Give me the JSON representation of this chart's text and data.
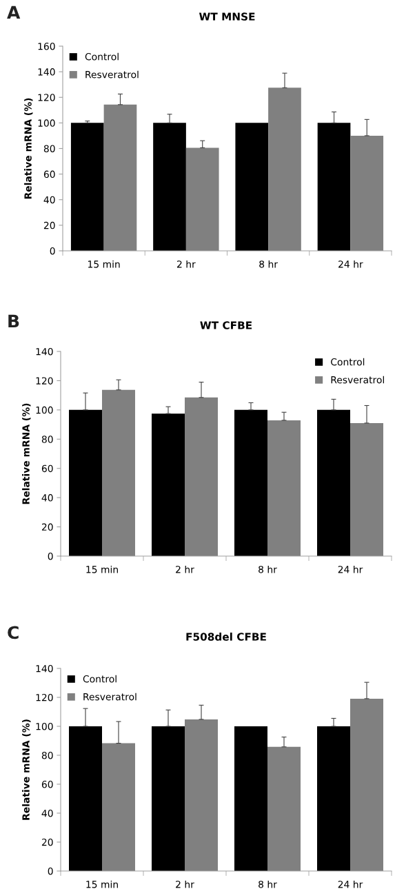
{
  "chart_data": [
    {
      "type": "bar",
      "title": "WT MNSE",
      "ylabel": "Relative mRNA (%)",
      "annotations": [
        "A"
      ],
      "categories": [
        "15 min",
        "2 hr",
        "8 hr",
        "24 hr"
      ],
      "ylim": [
        0,
        160
      ],
      "yticks": [
        0,
        20,
        40,
        60,
        80,
        100,
        120,
        140,
        160
      ],
      "legend": "top left",
      "grid": false,
      "series": [
        {
          "name": "Control",
          "color": "#000000",
          "values": [
            100,
            100,
            100,
            100
          ],
          "errors": [
            [
              100,
              101.5
            ],
            [
              100,
              106.8
            ],
            null,
            [
              100,
              108.6
            ]
          ]
        },
        {
          "name": "Resveratrol",
          "color": "#808080",
          "values": [
            114.3,
            80.6,
            127.5,
            90.0
          ],
          "errors": [
            [
              114.3,
              122.6
            ],
            [
              80.6,
              86.1
            ],
            [
              127.5,
              138.9
            ],
            [
              90.0,
              102.7
            ]
          ]
        }
      ]
    },
    {
      "type": "bar",
      "title": "WT CFBE",
      "ylabel": "Relative mRNA (%)",
      "annotations": [
        "B"
      ],
      "categories": [
        "15 min",
        "2 hr",
        "8 hr",
        "24 hr"
      ],
      "ylim": [
        0,
        140
      ],
      "yticks": [
        0,
        20,
        40,
        60,
        80,
        100,
        120,
        140
      ],
      "legend": "top right",
      "grid": false,
      "series": [
        {
          "name": "Control",
          "color": "#000000",
          "values": [
            100,
            97.5,
            100,
            100
          ],
          "errors": [
            [
              100,
              111.6
            ],
            [
              97.5,
              102.2
            ],
            [
              100,
              104.9
            ],
            [
              100,
              107.3
            ]
          ]
        },
        {
          "name": "Resveratrol",
          "color": "#808080",
          "values": [
            113.7,
            108.5,
            92.9,
            91.0
          ],
          "errors": [
            [
              113.7,
              120.6
            ],
            [
              108.5,
              119.0
            ],
            [
              92.9,
              98.4
            ],
            [
              91.0,
              103.0
            ]
          ]
        }
      ]
    },
    {
      "type": "bar",
      "title": "F508del CFBE",
      "ylabel": "Relative mRNA (%)",
      "annotations": [
        "C"
      ],
      "categories": [
        "15 min",
        "2 hr",
        "8 hr",
        "24 hr"
      ],
      "ylim": [
        0,
        140
      ],
      "yticks": [
        0,
        20,
        40,
        60,
        80,
        100,
        120,
        140
      ],
      "legend": "top left",
      "grid": false,
      "series": [
        {
          "name": "Control",
          "color": "#000000",
          "values": [
            100,
            100,
            100,
            100
          ],
          "errors": [
            [
              100,
              112.3
            ],
            [
              100,
              111.3
            ],
            null,
            [
              100,
              105.5
            ]
          ]
        },
        {
          "name": "Resveratrol",
          "color": "#808080",
          "values": [
            88.3,
            104.8,
            85.8,
            119.1
          ],
          "errors": [
            [
              88.3,
              103.3
            ],
            [
              104.8,
              114.6
            ],
            [
              85.8,
              92.6
            ],
            [
              119.1,
              130.4
            ]
          ]
        }
      ]
    }
  ]
}
